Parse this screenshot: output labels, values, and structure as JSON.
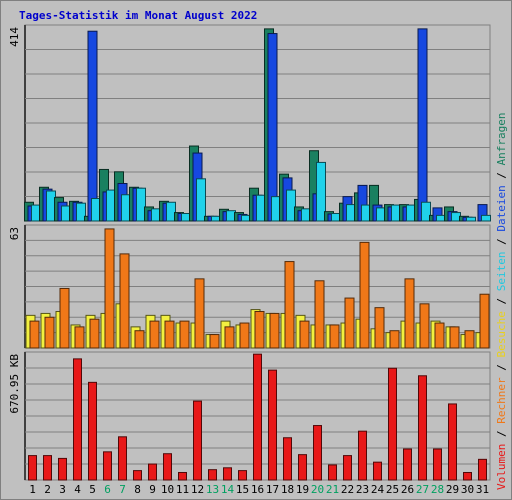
{
  "chart_data": {
    "type": "bar",
    "title": "Tages-Statistik im Monat August 2022",
    "categories": [
      "1",
      "2",
      "3",
      "4",
      "5",
      "6",
      "7",
      "8",
      "9",
      "10",
      "11",
      "12",
      "13",
      "14",
      "15",
      "16",
      "17",
      "18",
      "19",
      "20",
      "21",
      "22",
      "23",
      "24",
      "25",
      "26",
      "27",
      "28",
      "29",
      "30",
      "31"
    ],
    "weekend_days": [
      "6",
      "7",
      "13",
      "14",
      "20",
      "21",
      "27",
      "28"
    ],
    "grid": true,
    "panels": [
      {
        "id": "top",
        "max_label": "414",
        "ylim": [
          0,
          414
        ],
        "series": [
          {
            "name": "Anfragen",
            "color": "#1a8060",
            "values": [
              40,
              72,
              50,
              42,
              10,
              110,
              105,
              72,
              30,
              42,
              18,
              160,
              10,
              25,
              18,
              70,
              410,
              100,
              30,
              150,
              20,
              38,
              60,
              76,
              35,
              35,
              46,
              12,
              30,
              10,
              0
            ]
          },
          {
            "name": "Dateien",
            "color": "#1648e0",
            "values": [
              32,
              68,
              40,
              40,
              405,
              62,
              80,
              70,
              22,
              38,
              16,
              145,
              10,
              20,
              14,
              55,
              400,
              92,
              22,
              58,
              15,
              52,
              76,
              34,
              30,
              30,
              410,
              28,
              20,
              8,
              35
            ]
          },
          {
            "name": "Seiten",
            "color": "#20d2ea",
            "values": [
              34,
              64,
              32,
              38,
              48,
              66,
              56,
              70,
              26,
              40,
              16,
              90,
              10,
              22,
              12,
              55,
              52,
              66,
              26,
              125,
              16,
              35,
              34,
              28,
              34,
              34,
              40,
              12,
              18,
              8,
              12
            ]
          }
        ]
      },
      {
        "id": "mid",
        "max_label": "63",
        "ylim": [
          0,
          63
        ],
        "series": [
          {
            "name": "Besuche",
            "color": "#f2f040",
            "values": [
              17,
              18,
              19,
              12,
              17,
              18,
              23,
              11,
              17,
              17,
              13,
              13,
              7,
              14,
              12,
              20,
              18,
              18,
              17,
              12,
              12,
              13,
              15,
              10,
              8,
              14,
              13,
              14,
              11,
              7,
              8
            ]
          },
          {
            "name": "Rechner",
            "color": "#f07818",
            "values": [
              14,
              16,
              31,
              11,
              15,
              62,
              49,
              9,
              14,
              14,
              14,
              36,
              7,
              11,
              13,
              19,
              18,
              45,
              14,
              35,
              12,
              26,
              55,
              21,
              9,
              36,
              23,
              13,
              11,
              9,
              28
            ]
          }
        ]
      },
      {
        "id": "bottom",
        "max_label": "670.95 KB",
        "ylim": [
          0,
          670.95
        ],
        "series": [
          {
            "name": "Volumen",
            "color": "#e81818",
            "values": [
              130,
              130,
              115,
              645,
              520,
              150,
              230,
              50,
              85,
              140,
              40,
              420,
              55,
              65,
              50,
              670,
              585,
              225,
              135,
              290,
              80,
              130,
              260,
              95,
              595,
              165,
              555,
              165,
              405,
              40,
              110
            ]
          }
        ]
      }
    ],
    "legend": {
      "placement": "right",
      "items": [
        {
          "label": "Volumen",
          "color": "#e81818"
        },
        {
          "label": "Rechner",
          "color": "#f07818"
        },
        {
          "label": "Besuche",
          "color": "#e8d020"
        },
        {
          "label": "Seiten",
          "color": "#20c8e0"
        },
        {
          "label": "Dateien",
          "color": "#1648e0"
        },
        {
          "label": "Anfragen",
          "color": "#1a8060"
        }
      ],
      "separator": "/",
      "separator_color": "#000000"
    },
    "colors": {
      "background": "#c0c0c0",
      "gridline": "#808080",
      "title": "#0000cc",
      "weekday_label": "#000000",
      "weekend_label": "#00a060"
    }
  }
}
